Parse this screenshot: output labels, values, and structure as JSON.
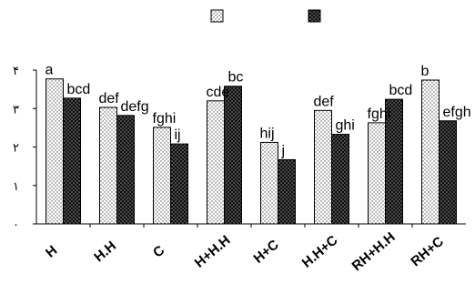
{
  "chart_data": {
    "type": "bar",
    "categories": [
      "H",
      "H.H",
      "C",
      "H+H.H",
      "H+C",
      "H.H+C",
      "RH+H.H",
      "RH+C"
    ],
    "series": [
      {
        "values": [
          3.77,
          3.03,
          2.51,
          3.2,
          2.12,
          2.95,
          2.63,
          3.74
        ],
        "labels": [
          "a",
          "def",
          "fghi",
          "cde",
          "hij",
          "def",
          "fghi",
          "b"
        ],
        "pattern": "dotted-light",
        "color": "#ffffff"
      },
      {
        "values": [
          3.27,
          2.82,
          2.08,
          3.58,
          1.67,
          2.33,
          3.24,
          2.68
        ],
        "labels": [
          "bcd",
          "defg",
          "ij",
          "bc",
          "j",
          "ghi",
          "bcd",
          "efgh"
        ],
        "pattern": "dotted-dark",
        "color": "#1a1a1a"
      }
    ],
    "y_ticks": [
      "۰",
      "۱",
      "۲",
      "۳",
      "۴"
    ],
    "ylim": [
      0,
      4
    ],
    "grid": false,
    "legend_position": "top"
  }
}
